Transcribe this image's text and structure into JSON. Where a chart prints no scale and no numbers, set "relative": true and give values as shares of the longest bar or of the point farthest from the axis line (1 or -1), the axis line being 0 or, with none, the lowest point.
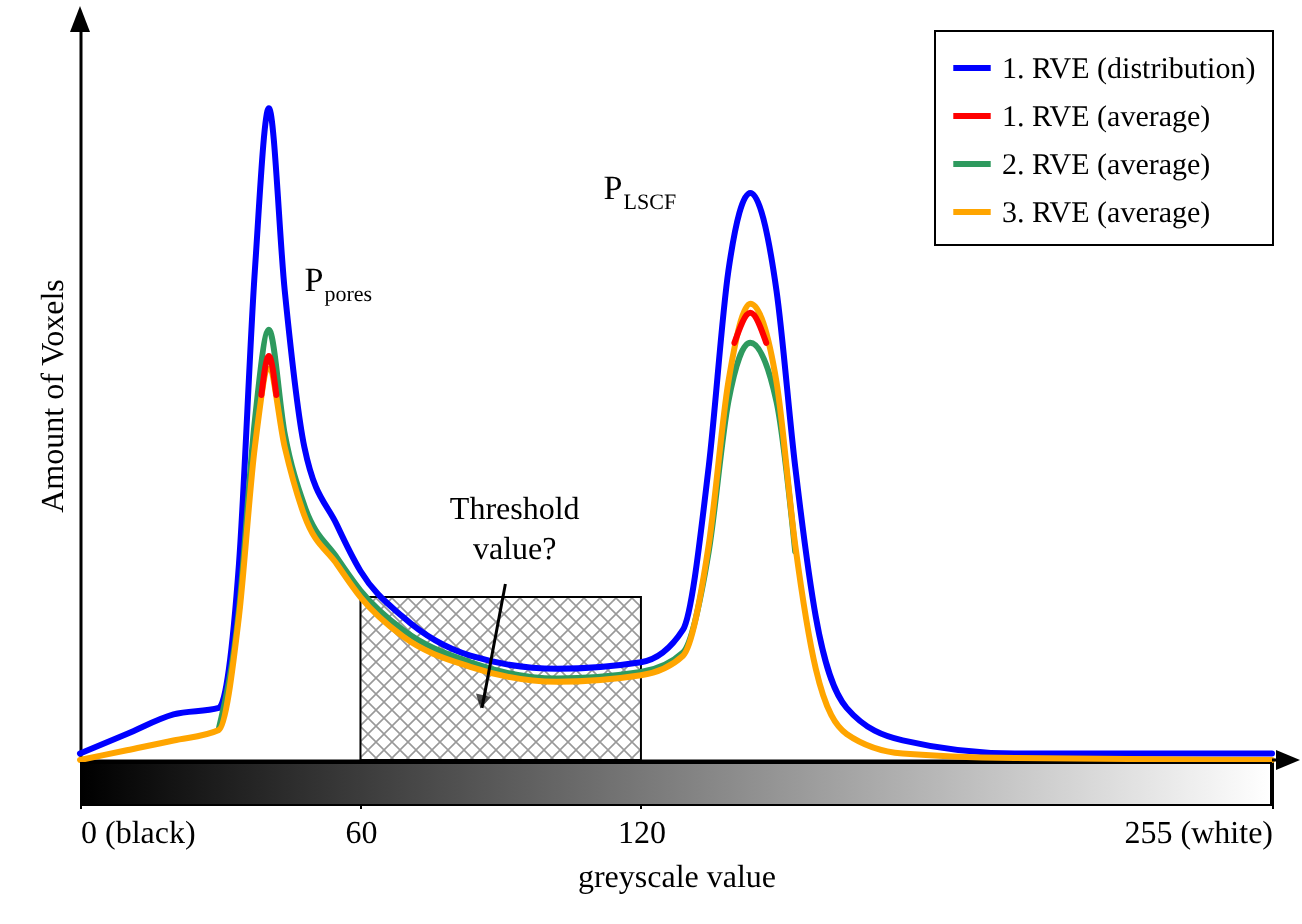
{
  "chart_data": {
    "type": "line",
    "relative": true,
    "xlabel": "greyscale value",
    "ylabel": "Amount of Voxels",
    "x": [
      0,
      10,
      20,
      29.7,
      34,
      37.4,
      40.4,
      43.8,
      48,
      55,
      60,
      69,
      83.5,
      102,
      120,
      129,
      134.5,
      138.7,
      143.4,
      149,
      153,
      157.4,
      164,
      176,
      200,
      255
    ],
    "xlim": [
      0,
      255
    ],
    "xticks": [
      {
        "value": 0,
        "label": "0 (black)"
      },
      60,
      120,
      {
        "value": 255,
        "label": "255 (white)"
      }
    ],
    "series": [
      {
        "name": "1. RVE (distribution)",
        "color": "#0000ff",
        "values": [
          0.01,
          0.04,
          0.07,
          0.08,
          0.3,
          0.75,
          1,
          0.72,
          0.48,
          0.36,
          0.29,
          0.22,
          0.16,
          0.14,
          0.15,
          0.2,
          0.45,
          0.75,
          0.87,
          0.72,
          0.45,
          0.22,
          0.08,
          0.03,
          0.01,
          0.01
        ]
      },
      {
        "name": "1. RVE (average)",
        "color": "#ff0000",
        "x": [
          38.8,
          40.4,
          42,
          null,
          140,
          143.4,
          146.8
        ],
        "values": [
          0.56,
          0.62,
          0.56,
          null,
          0.64,
          0.686,
          0.64
        ]
      },
      {
        "name": "2. RVE (average)",
        "color": "#2e9a5e",
        "values": [
          null,
          null,
          null,
          0.048,
          0.23,
          0.52,
          0.66,
          0.5,
          0.39,
          0.31,
          0.26,
          0.2,
          0.15,
          0.125,
          0.135,
          0.165,
          0.32,
          0.55,
          0.64,
          0.55,
          0.32,
          null,
          null,
          null,
          null,
          null
        ]
      },
      {
        "name": "3. RVE (average)",
        "color": "#ffa500",
        "values": [
          0,
          0.015,
          0.03,
          0.046,
          0.22,
          0.48,
          0.6,
          0.48,
          0.375,
          0.3,
          0.25,
          0.19,
          0.143,
          0.12,
          0.13,
          0.16,
          0.33,
          0.58,
          0.7,
          0.58,
          0.33,
          0.14,
          0.04,
          0.01,
          0.003,
          0
        ]
      }
    ],
    "bands": [
      {
        "axis": "x",
        "from": 60,
        "to": 120
      }
    ],
    "annotations": [
      "P$_{pores}$",
      "P$_{LSCF}$",
      "Threshold value?"
    ],
    "legend": "top right",
    "tick_labels": "x",
    "grid": false,
    "line_style": "solid",
    "marker": "none"
  }
}
